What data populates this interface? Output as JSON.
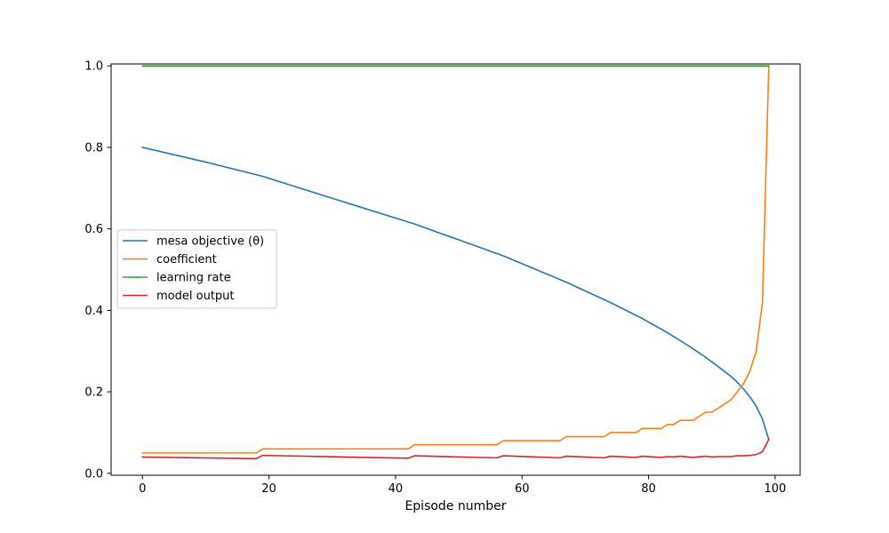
{
  "chart_data": {
    "type": "line",
    "title": "",
    "xlabel": "Episode number",
    "ylabel": "",
    "xlim": [
      -4.95,
      103.95
    ],
    "ylim": [
      -0.0048,
      1.0048
    ],
    "xticks": [
      0,
      20,
      40,
      60,
      80,
      100
    ],
    "xtick_labels": [
      "0",
      "20",
      "40",
      "60",
      "80",
      "100"
    ],
    "yticks": [
      0.0,
      0.2,
      0.4,
      0.6,
      0.8,
      1.0
    ],
    "ytick_labels": [
      "0.0",
      "0.2",
      "0.4",
      "0.6",
      "0.8",
      "1.0"
    ],
    "grid": false,
    "legend_position": "center-left",
    "series": [
      {
        "name": "mesa objective (θ)",
        "color": "#1f77b4",
        "x": [
          0,
          10,
          19,
          30,
          43,
          50,
          57,
          67,
          74,
          79,
          83,
          86,
          89,
          91,
          93,
          94,
          95,
          96,
          97,
          98,
          99
        ],
        "y": [
          0.8,
          0.764,
          0.729,
          0.675,
          0.612,
          0.573,
          0.534,
          0.469,
          0.419,
          0.38,
          0.345,
          0.316,
          0.285,
          0.262,
          0.238,
          0.224,
          0.207,
          0.188,
          0.165,
          0.133,
          0.083
        ]
      },
      {
        "name": "coefficient",
        "color": "#ff7f0e",
        "x": [
          0,
          18,
          19,
          42,
          43,
          56,
          57,
          66,
          67,
          73,
          74,
          78,
          79,
          82,
          83,
          84,
          85,
          87,
          89,
          90,
          91,
          93,
          94,
          95,
          96,
          97,
          98,
          99
        ],
        "y": [
          0.05,
          0.05,
          0.06,
          0.06,
          0.07,
          0.07,
          0.08,
          0.08,
          0.09,
          0.09,
          0.1,
          0.1,
          0.11,
          0.11,
          0.12,
          0.12,
          0.13,
          0.13,
          0.15,
          0.15,
          0.16,
          0.18,
          0.2,
          0.22,
          0.25,
          0.3,
          0.42,
          1.0
        ]
      },
      {
        "name": "learning rate",
        "color": "#2ca02c",
        "x": [
          0,
          99
        ],
        "y": [
          1.0,
          1.0
        ]
      },
      {
        "name": "model output",
        "color": "#d62728",
        "x": [
          0,
          18,
          19,
          42,
          43,
          56,
          57,
          66,
          67,
          73,
          74,
          78,
          79,
          82,
          83,
          84,
          85,
          87,
          89,
          90,
          91,
          93,
          94,
          95,
          96,
          97,
          98,
          99
        ],
        "y": [
          0.04,
          0.036,
          0.044,
          0.037,
          0.043,
          0.038,
          0.043,
          0.038,
          0.042,
          0.038,
          0.042,
          0.039,
          0.042,
          0.039,
          0.041,
          0.04,
          0.042,
          0.039,
          0.042,
          0.04,
          0.041,
          0.041,
          0.043,
          0.043,
          0.044,
          0.046,
          0.053,
          0.083
        ]
      }
    ]
  }
}
